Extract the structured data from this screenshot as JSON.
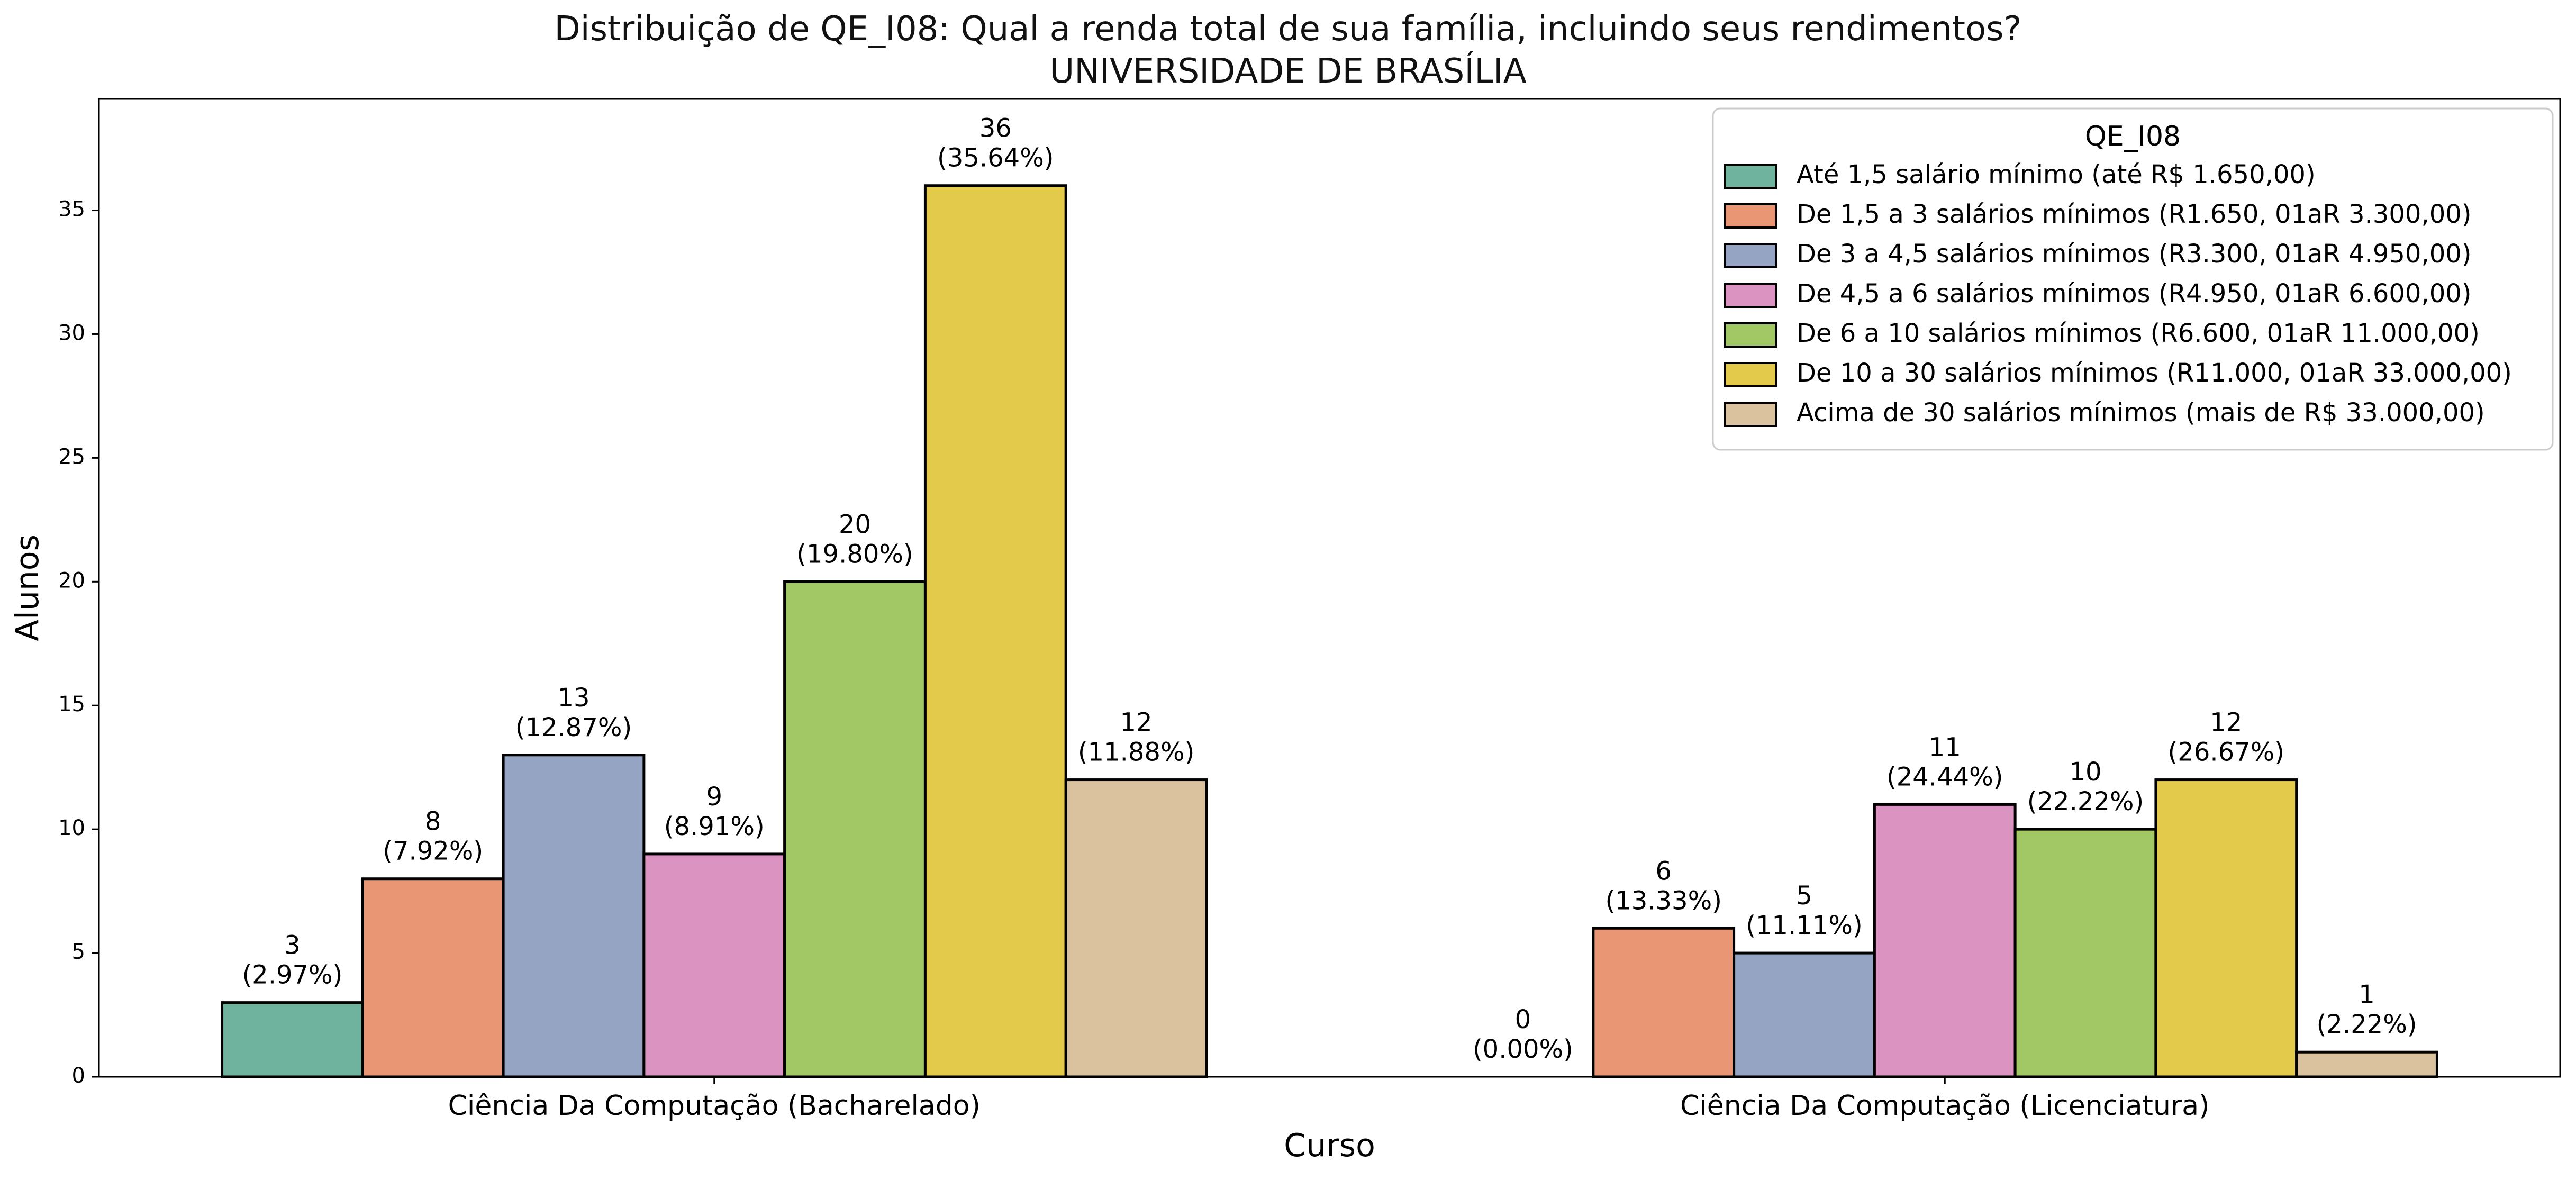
{
  "chart_data": {
    "type": "bar",
    "title": "Distribuição de QE_I08: Qual a renda total de sua família, incluindo seus rendimentos?",
    "subtitle": "UNIVERSIDADE DE BRASÍLIA",
    "xlabel": "Curso",
    "ylabel": "Alunos",
    "ylim": [
      0,
      39.5
    ],
    "yticks": [
      0,
      5,
      10,
      15,
      20,
      25,
      30,
      35
    ],
    "grid": false,
    "legend_title": "QE_I08",
    "legend_position": "top-right",
    "categories": [
      "Ciência Da Computação (Bacharelado)",
      "Ciência Da Computação (Licenciatura)"
    ],
    "series": [
      {
        "name": "Até 1,5 salário mínimo (até R$ 1.650,00)",
        "color": "#6fb39e",
        "values": [
          3,
          0
        ],
        "labels": [
          "(2.97%)",
          "(0.00%)"
        ]
      },
      {
        "name": "De 1,5 a 3 salários mínimos (R1.650, 01aR 3.300,00)",
        "color": "#e99674",
        "values": [
          8,
          6
        ],
        "labels": [
          "(7.92%)",
          "(13.33%)"
        ]
      },
      {
        "name": "De 3 a 4,5 salários mínimos (R3.300, 01aR 4.950,00)",
        "color": "#95a4c2",
        "values": [
          13,
          5
        ],
        "labels": [
          "(12.87%)",
          "(11.11%)"
        ]
      },
      {
        "name": "De 4,5 a 6 salários mínimos (R4.950, 01aR 6.600,00)",
        "color": "#db94c1",
        "values": [
          9,
          11
        ],
        "labels": [
          "(8.91%)",
          "(24.44%)"
        ]
      },
      {
        "name": "De 6 a 10 salários mínimos (R6.600, 01aR 11.000,00)",
        "color": "#a2c865",
        "values": [
          20,
          10
        ],
        "labels": [
          "(19.80%)",
          "(22.22%)"
        ]
      },
      {
        "name": "De 10 a 30 salários mínimos (R11.000, 01aR 33.000,00)",
        "color": "#e4ca4a",
        "values": [
          36,
          12
        ],
        "labels": [
          "(35.64%)",
          "(26.67%)"
        ]
      },
      {
        "name": "Acima de 30 salários mínimos (mais de R$ 33.000,00)",
        "color": "#dbc29e",
        "values": [
          12,
          1
        ],
        "labels": [
          "(11.88%)",
          "(2.22%)"
        ]
      }
    ]
  }
}
